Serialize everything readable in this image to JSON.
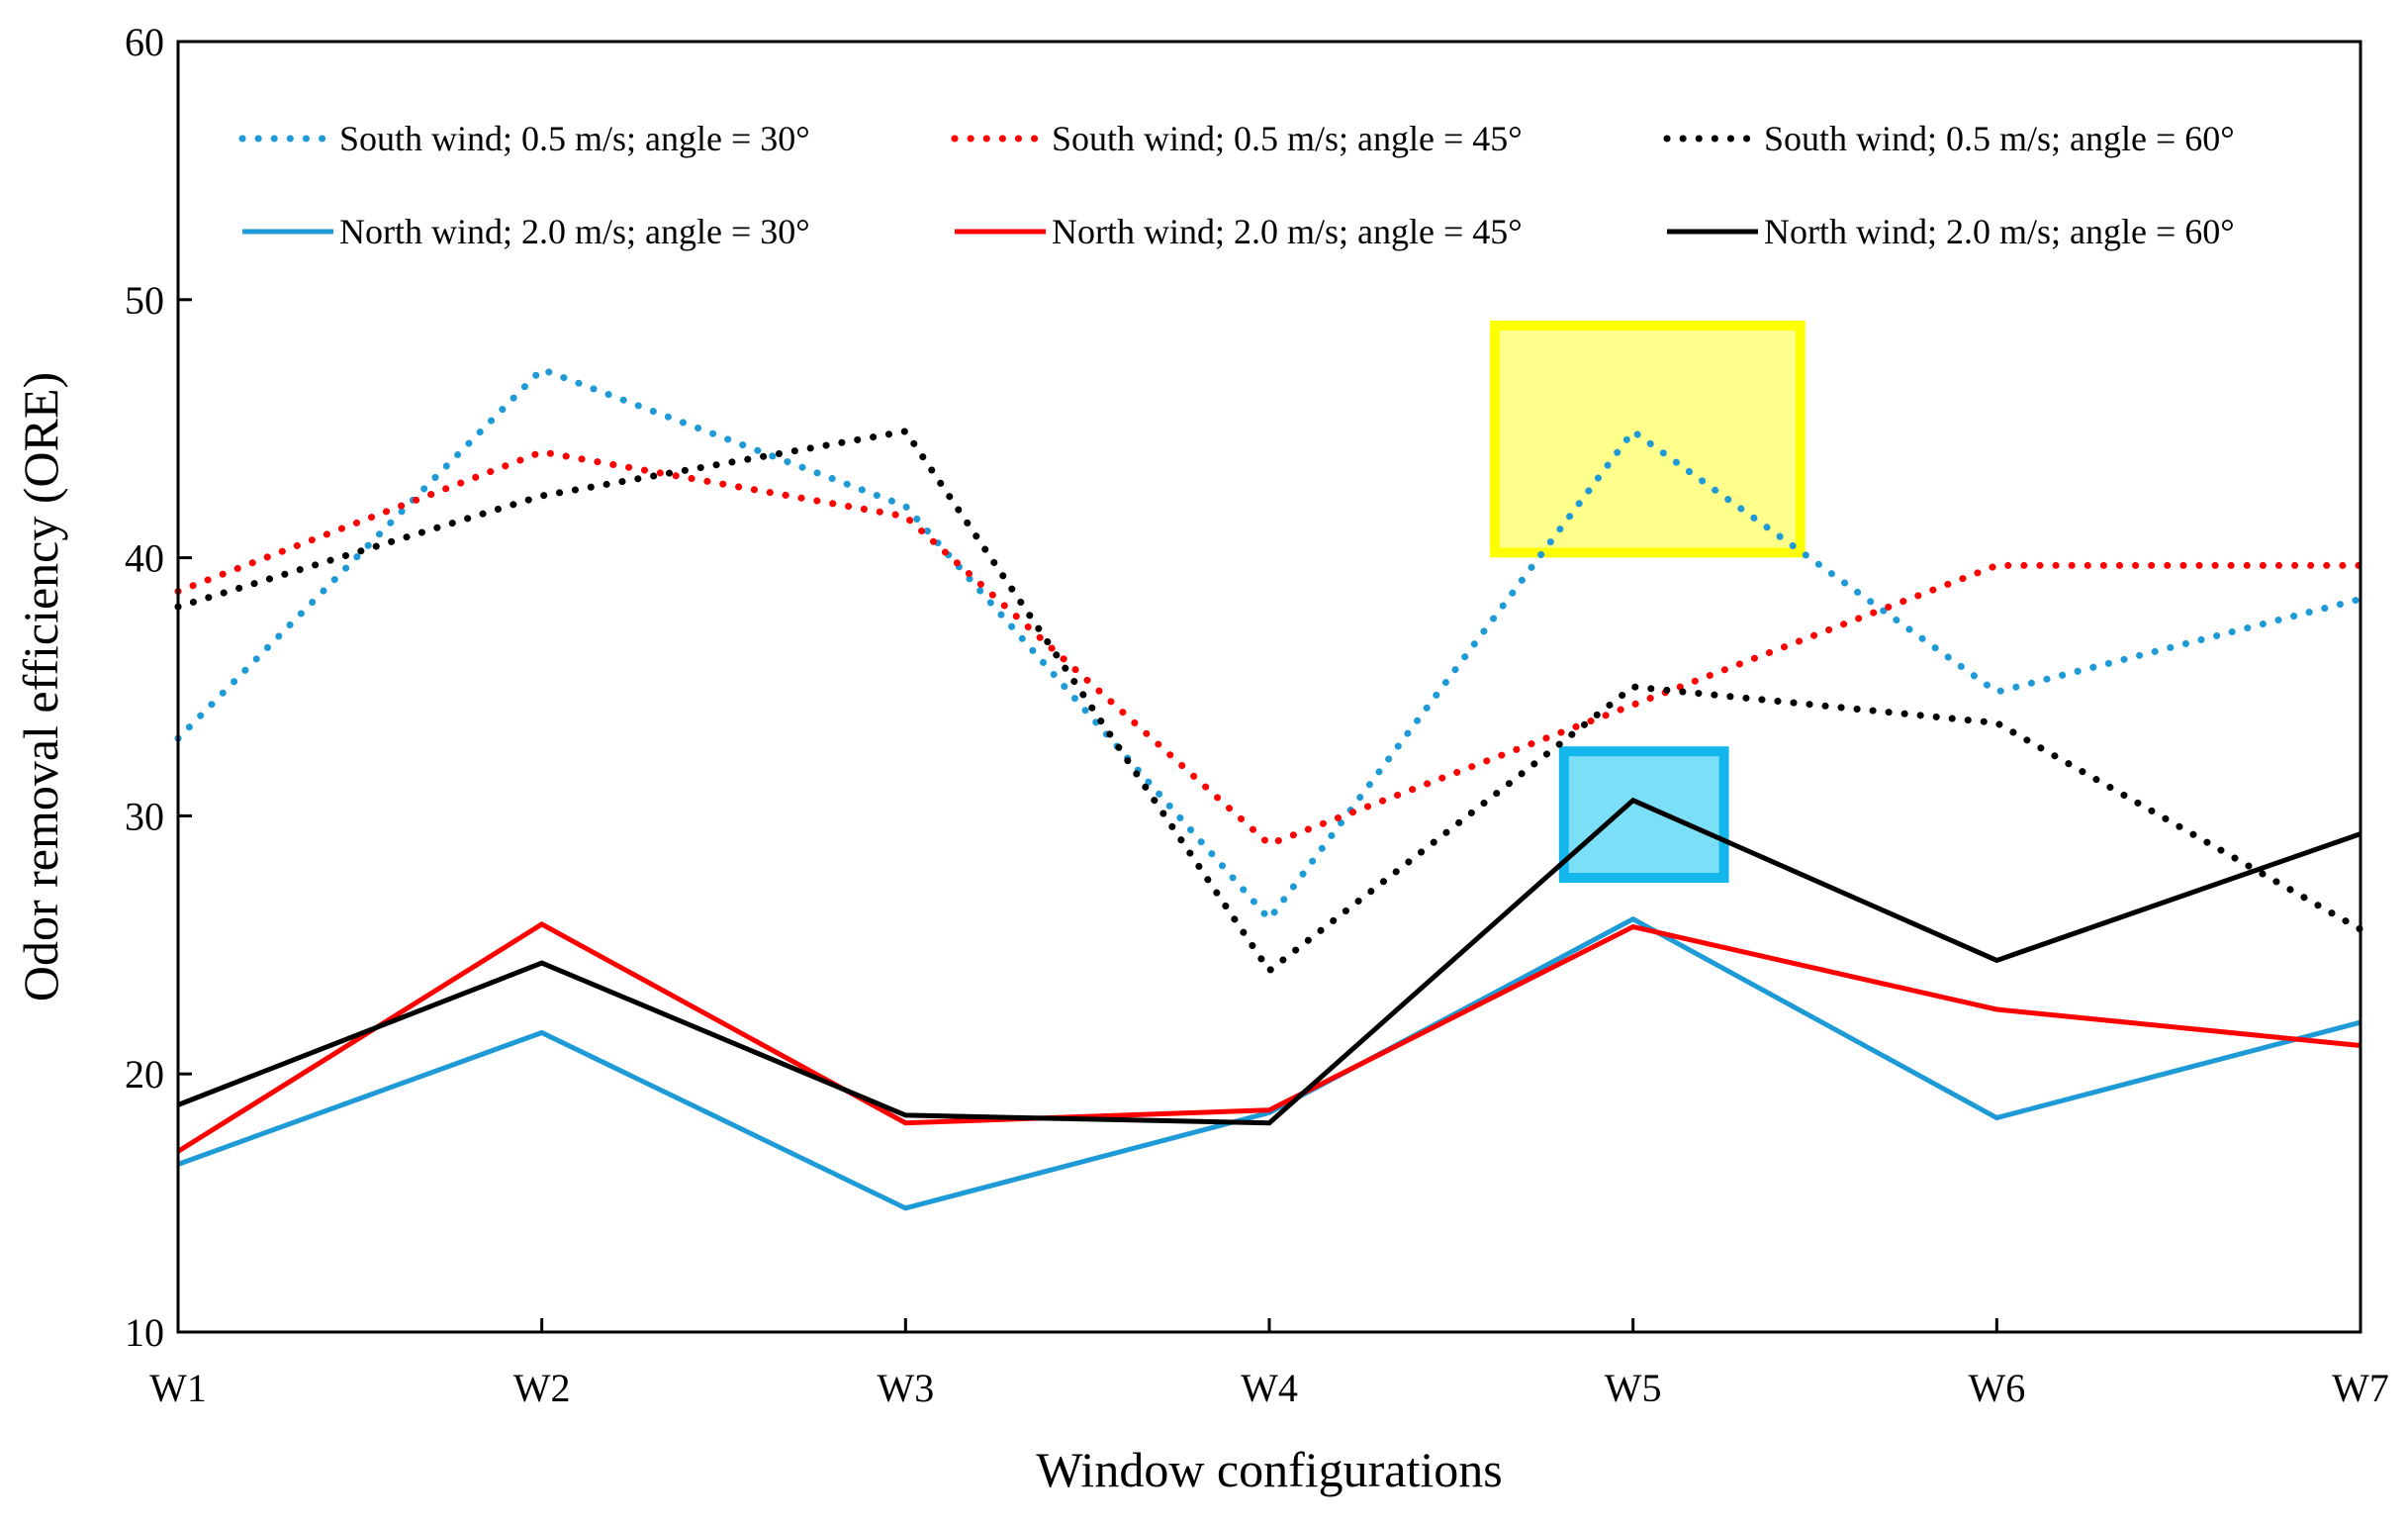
{
  "chart_data": {
    "type": "line",
    "title": "",
    "xlabel": "Window configurations",
    "ylabel": "Odor removal efficiency (ORE)",
    "categories": [
      "W1",
      "W2",
      "W3",
      "W4",
      "W5",
      "W6",
      "W7"
    ],
    "ylim": [
      10,
      60
    ],
    "yticks": [
      10,
      20,
      30,
      40,
      50,
      60
    ],
    "grid": false,
    "legend_position": "top",
    "series": [
      {
        "name": "South wind; 0.5 m/s; angle = 30°",
        "color": "#1E9BD7",
        "style": "dotted",
        "values": [
          33.0,
          47.3,
          42.0,
          26.0,
          44.9,
          34.8,
          38.4
        ]
      },
      {
        "name": "South wind; 0.5 m/s; angle = 45°",
        "color": "#FF0000",
        "style": "dotted",
        "values": [
          38.7,
          44.1,
          41.6,
          28.9,
          34.3,
          39.7,
          39.7
        ]
      },
      {
        "name": "South wind; 0.5 m/s; angle = 60°",
        "color": "#000000",
        "style": "dotted",
        "values": [
          38.1,
          42.4,
          44.9,
          24.0,
          35.0,
          33.6,
          25.6
        ]
      },
      {
        "name": "North wind; 2.0 m/s; angle = 30°",
        "color": "#1E9BD7",
        "style": "solid",
        "values": [
          16.5,
          21.6,
          14.8,
          18.5,
          26.0,
          18.3,
          22.0
        ]
      },
      {
        "name": "North wind; 2.0 m/s; angle = 45°",
        "color": "#FF0000",
        "style": "solid",
        "values": [
          17.0,
          25.8,
          18.1,
          18.6,
          25.7,
          22.5,
          21.1
        ]
      },
      {
        "name": "North wind; 2.0 m/s; angle = 60°",
        "color": "#000000",
        "style": "solid",
        "values": [
          18.8,
          24.3,
          18.4,
          18.1,
          30.6,
          24.4,
          29.3
        ]
      }
    ],
    "highlights": [
      {
        "name": "yellow-highlight",
        "category": "W5",
        "x_from": 3.62,
        "x_to": 4.46,
        "y_from": 40.2,
        "y_to": 49.0,
        "fill": "#FFFF8C",
        "stroke": "#FFFF00"
      },
      {
        "name": "blue-highlight",
        "category": "W5",
        "x_from": 3.81,
        "x_to": 4.25,
        "y_from": 27.6,
        "y_to": 32.5,
        "fill": "#7ADFF7",
        "stroke": "#13B7EC"
      }
    ]
  }
}
